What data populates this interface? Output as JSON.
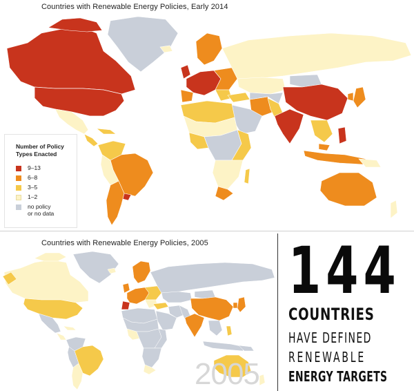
{
  "top_map": {
    "title": "Countries with Renewable Energy Policies, Early 2014"
  },
  "legend": {
    "title": "Number of Policy Types Enacted",
    "items": [
      {
        "label": "9–13",
        "color": "#c8341d"
      },
      {
        "label": "6–8",
        "color": "#ee8c1e"
      },
      {
        "label": "3–5",
        "color": "#f5c94a"
      },
      {
        "label": "1–2",
        "color": "#fdf3c6"
      },
      {
        "label": "no policy\nor no data",
        "color": "#c9cfd9"
      }
    ]
  },
  "bottom_map": {
    "title": "Countries with Renewable Energy Policies, 2005",
    "year_watermark": "2005"
  },
  "stat": {
    "number": "144",
    "line1": "COUNTRIES",
    "line2": "HAVE DEFINED",
    "line3": "RENEWABLE",
    "line4": "ENERGY TARGETS"
  },
  "colors": {
    "high": "#c8341d",
    "mid_high": "#ee8c1e",
    "mid": "#f5c94a",
    "low": "#fdf3c6",
    "none": "#c9cfd9"
  }
}
